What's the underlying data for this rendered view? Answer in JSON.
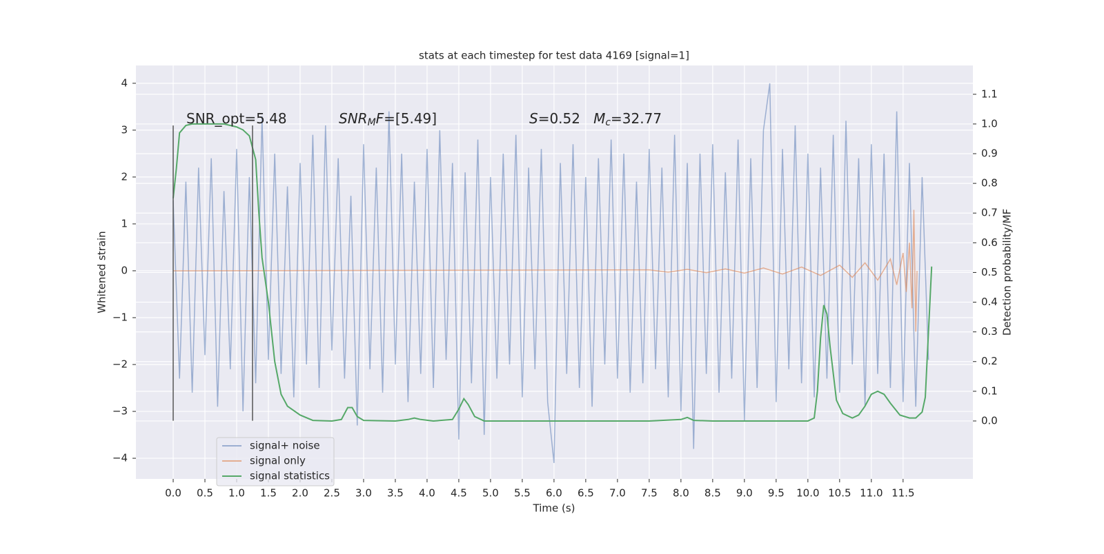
{
  "chart_data": {
    "type": "line",
    "title": "stats at each timestep for test data 4169 [signal=1]",
    "x_label": "Time (s)",
    "y_label": "Whitened strain",
    "y2_label": "Detection probability/MF",
    "annotations": [
      [
        {
          "text": "SNR_opt=5.48",
          "style": "normal"
        }
      ],
      [
        {
          "text": "SNR",
          "style": "italic"
        },
        {
          "text": "M",
          "style": "sub"
        },
        {
          "text": "F",
          "style": "italic"
        },
        {
          "text": "=[5.49]",
          "style": "normal"
        }
      ],
      [
        {
          "text": "S",
          "style": "italic"
        },
        {
          "text": "=0.52   ",
          "style": "normal"
        },
        {
          "text": "M",
          "style": "italic"
        },
        {
          "text": "c",
          "style": "sub"
        },
        {
          "text": "=32.77",
          "style": "normal"
        }
      ]
    ],
    "vlines": [
      {
        "x": 0,
        "ymin": -3.2,
        "ymax": 3.1,
        "color": "#555555"
      },
      {
        "x": 1.25,
        "ymin": -3.2,
        "ymax": 3.1,
        "color": "#555555"
      }
    ],
    "series": [
      {
        "name": "signal+ noise",
        "color": "#4c72b0",
        "opacity": 0.5,
        "x": [
          0,
          0.1,
          0.2,
          0.3,
          0.4,
          0.5,
          0.6,
          0.7,
          0.8,
          0.9,
          1,
          1.1,
          1.2,
          1.3,
          1.4,
          1.5,
          1.6,
          1.7,
          1.8,
          1.9,
          2,
          2.1,
          2.2,
          2.3,
          2.4,
          2.5,
          2.6,
          2.7,
          2.8,
          2.9,
          3,
          3.1,
          3.2,
          3.3,
          3.4,
          3.5,
          3.6,
          3.7,
          3.8,
          3.9,
          4,
          4.1,
          4.2,
          4.3,
          4.4,
          4.5,
          4.6,
          4.7,
          4.8,
          4.9,
          5,
          5.1,
          5.2,
          5.3,
          5.4,
          5.5,
          5.6,
          5.7,
          5.8,
          5.9,
          6,
          6.1,
          6.2,
          6.3,
          6.4,
          6.5,
          6.6,
          6.7,
          6.8,
          6.9,
          7,
          7.1,
          7.2,
          7.3,
          7.4,
          7.5,
          7.6,
          7.7,
          7.8,
          7.9,
          8,
          8.1,
          8.2,
          8.3,
          8.4,
          8.5,
          8.6,
          8.7,
          8.8,
          8.9,
          9,
          9.1,
          9.2,
          9.3,
          9.4,
          9.5,
          9.6,
          9.7,
          9.8,
          9.9,
          10,
          10.1,
          10.2,
          10.3,
          10.4,
          10.5,
          10.6,
          10.7,
          10.8,
          10.9,
          11,
          11.1,
          11.2,
          11.3,
          11.4,
          11.5,
          11.6,
          11.7,
          11.8,
          11.9
        ],
        "values": [
          1.5,
          -2.3,
          1.9,
          -2.6,
          2.2,
          -1.8,
          2.4,
          -2.9,
          1.7,
          -2.1,
          2.6,
          -3.0,
          2.0,
          -2.4,
          3.3,
          -1.9,
          2.5,
          -2.2,
          1.8,
          -2.7,
          2.3,
          -2.0,
          2.9,
          -2.5,
          3.1,
          -1.7,
          2.4,
          -2.3,
          1.6,
          -3.3,
          2.7,
          -2.1,
          2.2,
          -2.6,
          3.4,
          -2.0,
          2.5,
          -2.8,
          1.9,
          -2.2,
          2.6,
          -2.5,
          3.0,
          -1.9,
          2.3,
          -3.6,
          2.1,
          -2.4,
          2.8,
          -3.5,
          2.0,
          -2.3,
          2.5,
          -2.0,
          2.9,
          -2.7,
          2.2,
          -2.1,
          2.6,
          -2.8,
          -4.1,
          2.3,
          -2.2,
          2.7,
          -2.5,
          2.0,
          -2.9,
          2.4,
          -2.0,
          2.8,
          -2.3,
          2.5,
          -2.6,
          1.9,
          -2.4,
          2.6,
          -2.1,
          2.2,
          -2.7,
          2.9,
          -3.0,
          2.3,
          -3.8,
          2.5,
          -2.2,
          2.7,
          -2.6,
          2.1,
          -2.3,
          2.8,
          -3.2,
          2.4,
          -2.5,
          3.0,
          4.0,
          -2.8,
          2.6,
          -2.1,
          3.1,
          -2.4,
          2.5,
          -2.7,
          2.2,
          -2.3,
          2.9,
          -2.6,
          3.2,
          -2.0,
          2.4,
          -2.9,
          2.7,
          -2.2,
          2.5,
          -2.5,
          3.4,
          -2.8,
          2.3,
          -2.9,
          2.0,
          -1.9
        ]
      },
      {
        "name": "signal only",
        "color": "#dd8452",
        "opacity": 0.6,
        "x": [
          0,
          7.5,
          7.8,
          8.1,
          8.4,
          8.7,
          9.0,
          9.3,
          9.6,
          9.9,
          10.2,
          10.5,
          10.7,
          10.9,
          11.1,
          11.3,
          11.4,
          11.5,
          11.55,
          11.6,
          11.64,
          11.67,
          11.7,
          11.72
        ],
        "values": [
          0,
          0.02,
          -0.03,
          0.03,
          -0.04,
          0.04,
          -0.05,
          0.06,
          -0.07,
          0.08,
          -0.1,
          0.12,
          -0.14,
          0.17,
          -0.2,
          0.25,
          -0.3,
          0.38,
          -0.45,
          0.6,
          -0.8,
          1.3,
          -1.3,
          0
        ]
      },
      {
        "name": "signal statistics",
        "color": "#55a868",
        "opacity": 1,
        "axis": "y2",
        "x": [
          0,
          0.05,
          0.1,
          0.2,
          0.3,
          0.5,
          0.8,
          1.0,
          1.1,
          1.2,
          1.3,
          1.35,
          1.4,
          1.5,
          1.6,
          1.7,
          1.8,
          2.0,
          2.2,
          2.5,
          2.65,
          2.75,
          2.82,
          2.9,
          3.0,
          3.5,
          3.7,
          3.8,
          3.9,
          4.1,
          4.4,
          4.5,
          4.58,
          4.65,
          4.75,
          4.9,
          5.5,
          7.5,
          8.0,
          8.1,
          8.2,
          8.5,
          10.0,
          10.1,
          10.15,
          10.2,
          10.25,
          10.3,
          10.35,
          10.45,
          10.55,
          10.7,
          10.8,
          10.9,
          11.0,
          11.1,
          11.2,
          11.3,
          11.45,
          11.6,
          11.7,
          11.8,
          11.85,
          11.9,
          11.95
        ],
        "values": [
          0.75,
          0.85,
          0.97,
          0.995,
          1.0,
          1.0,
          1.0,
          0.99,
          0.98,
          0.96,
          0.88,
          0.7,
          0.55,
          0.4,
          0.2,
          0.09,
          0.05,
          0.02,
          0.002,
          0.0,
          0.005,
          0.045,
          0.045,
          0.015,
          0.002,
          0.0,
          0.005,
          0.01,
          0.005,
          0.0,
          0.005,
          0.04,
          0.075,
          0.055,
          0.015,
          0.0,
          0.0,
          0.0,
          0.005,
          0.012,
          0.002,
          0.0,
          0.0,
          0.01,
          0.1,
          0.28,
          0.39,
          0.36,
          0.25,
          0.07,
          0.025,
          0.01,
          0.02,
          0.05,
          0.09,
          0.1,
          0.09,
          0.06,
          0.02,
          0.01,
          0.01,
          0.03,
          0.08,
          0.3,
          0.52
        ]
      }
    ],
    "xlim": [
      -0.587,
      12.6
    ],
    "xticks": [
      {
        "value": 0,
        "label": "0.0"
      },
      0.5,
      {
        "value": 1,
        "label": "1.0"
      },
      1.5,
      {
        "value": 2,
        "label": "2.0"
      },
      2.5,
      {
        "value": 3,
        "label": "3.0"
      },
      3.5,
      {
        "value": 4,
        "label": "4.0"
      },
      4.5,
      {
        "value": 5,
        "label": "5.0"
      },
      5.5,
      {
        "value": 6,
        "label": "6.0"
      },
      6.5,
      {
        "value": 7,
        "label": "7.0"
      },
      7.5,
      {
        "value": 8,
        "label": "8.0"
      },
      8.5,
      {
        "value": 9,
        "label": "9.0"
      },
      9.5,
      {
        "value": 10,
        "label": "10.0"
      },
      10.5,
      {
        "value": 11,
        "label": "11.0"
      },
      11.5
    ],
    "ylim": [
      -4.44,
      4.38
    ],
    "yticks": [
      {
        "value": -4,
        "label": "−4"
      },
      {
        "value": -3,
        "label": "−3"
      },
      {
        "value": -2,
        "label": "−2"
      },
      {
        "value": -1,
        "label": "−1"
      },
      0,
      1,
      2,
      3,
      4
    ],
    "y2lim": [
      -0.195,
      1.197
    ],
    "y2ticks": [
      {
        "value": 0,
        "label": "0.0"
      },
      0.1,
      0.2,
      0.3,
      0.4,
      0.5,
      0.6,
      0.7,
      0.8,
      0.9,
      {
        "value": 1,
        "label": "1.0"
      },
      1.1
    ],
    "grid": true,
    "legend": "lower left"
  }
}
